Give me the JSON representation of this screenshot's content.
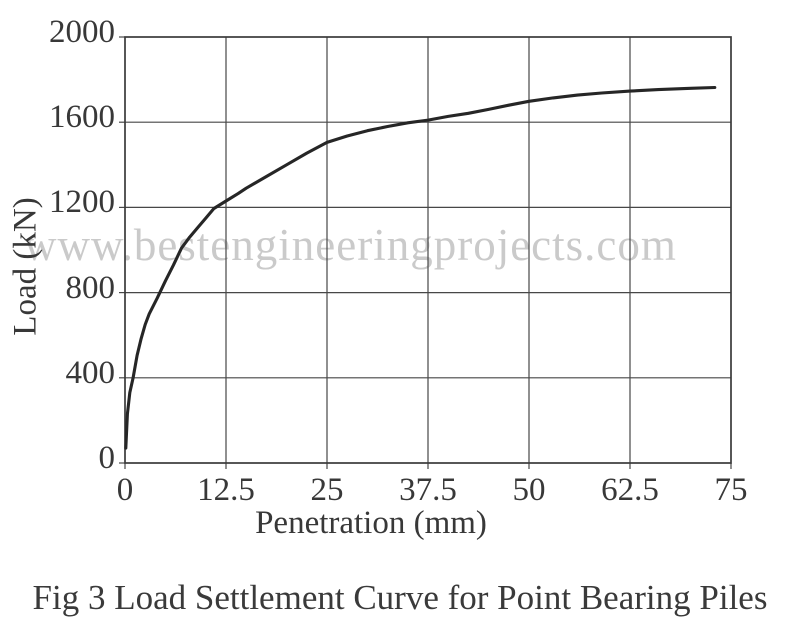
{
  "watermark": "www.bestengineeringprojects.com",
  "caption": "Fig 3 Load Settlement Curve for Point Bearing Piles",
  "colors": {
    "background": "#ffffff",
    "grid": "#474747",
    "axis_border": "#3a3a3a",
    "curve": "#262626",
    "text": "#383838",
    "watermark": "#cacaca"
  },
  "chart_data": {
    "type": "line",
    "title": "Fig 3 Load Settlement Curve for Point Bearing Piles",
    "xlabel": "Penetration (mm)",
    "ylabel": "Load (kN)",
    "xlim": [
      0,
      75
    ],
    "ylim": [
      0,
      2000
    ],
    "grid": true,
    "legend": "none",
    "x_tick_values": [
      0,
      12.5,
      25,
      37.5,
      50,
      62.5,
      75
    ],
    "x_tick_labels": [
      "0",
      "12.5",
      "25",
      "37.5",
      "50",
      "62.5",
      "75"
    ],
    "y_tick_values": [
      0,
      400,
      800,
      1200,
      1600,
      2000
    ],
    "y_tick_labels": [
      "0",
      "400",
      "800",
      "1200",
      "1600",
      "2000"
    ],
    "series": [
      {
        "name": "load-settlement-curve",
        "x": [
          0.1,
          0.3,
          0.6,
          1,
          1.5,
          2,
          2.5,
          3,
          4,
          5,
          6,
          7,
          8,
          9,
          10,
          11,
          12.5,
          14,
          15,
          17.5,
          20,
          22.5,
          25,
          27.5,
          30,
          32.5,
          35,
          37.5,
          40,
          42.5,
          45,
          47.5,
          50,
          53,
          56,
          59,
          62.5,
          66,
          70,
          73
        ],
        "y": [
          70,
          230,
          330,
          400,
          505,
          585,
          650,
          700,
          775,
          855,
          930,
          1010,
          1060,
          1105,
          1150,
          1195,
          1230,
          1265,
          1290,
          1345,
          1400,
          1455,
          1505,
          1535,
          1560,
          1580,
          1597,
          1610,
          1627,
          1642,
          1660,
          1680,
          1698,
          1714,
          1727,
          1737,
          1746,
          1753,
          1759,
          1763
        ]
      }
    ]
  }
}
